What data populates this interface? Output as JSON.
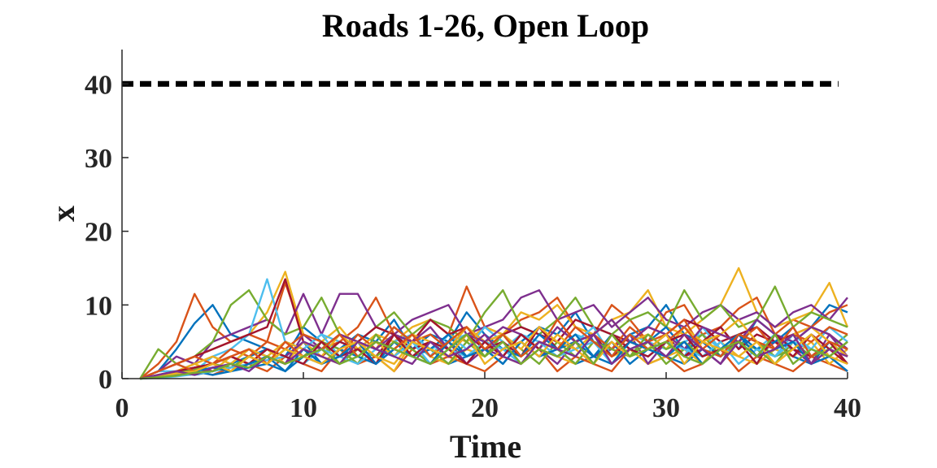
{
  "chart_data": {
    "type": "line",
    "title": "Roads 1-26, Open Loop",
    "xlabel": "Time",
    "ylabel": "x",
    "xlim": [
      0,
      40
    ],
    "ylim": [
      0,
      44
    ],
    "xticks": [
      "0",
      "10",
      "20",
      "30",
      "40"
    ],
    "yticks": [
      "0",
      "10",
      "20",
      "30",
      "40"
    ],
    "grid": false,
    "legend": "none",
    "x": [
      1,
      2,
      3,
      4,
      5,
      6,
      7,
      8,
      9,
      10,
      11,
      12,
      13,
      14,
      15,
      16,
      17,
      18,
      19,
      20,
      21,
      22,
      23,
      24,
      25,
      26,
      27,
      28,
      29,
      30,
      31,
      32,
      33,
      34,
      35,
      36,
      37,
      38,
      39,
      40
    ],
    "threshold": {
      "value": 40,
      "x_range": [
        0,
        39.5
      ],
      "style": "dashed",
      "color": "#000000"
    },
    "palette": [
      "#0072BD",
      "#D95319",
      "#EDB120",
      "#7E2F8E",
      "#77AC30",
      "#4DBEEE",
      "#A2142F"
    ],
    "series": [
      {
        "values": [
          0,
          1,
          4,
          7.5,
          10,
          6,
          5,
          4,
          3,
          7,
          5,
          4,
          6,
          5,
          8,
          4,
          6,
          5,
          9,
          6,
          4,
          5,
          7,
          6,
          9,
          5,
          4,
          6,
          7,
          10,
          6,
          5,
          7,
          4,
          8,
          6,
          5,
          7,
          10,
          9
        ]
      },
      {
        "values": [
          0,
          2,
          5,
          11.5,
          7,
          5,
          6,
          5,
          13,
          6,
          4,
          5,
          7,
          11,
          6,
          5,
          8,
          6,
          12.5,
          7,
          6,
          8,
          9,
          11,
          7,
          6,
          10,
          8,
          5,
          9,
          10,
          6,
          7,
          9.5,
          11,
          6,
          8,
          7,
          9,
          10
        ]
      },
      {
        "values": [
          0,
          1,
          2,
          3,
          4,
          5,
          6,
          9,
          14.5,
          6,
          5,
          7,
          4,
          6,
          5,
          7,
          8,
          6,
          5,
          7,
          6,
          9,
          8,
          10,
          7,
          6,
          8,
          9,
          12,
          7,
          6,
          8,
          10,
          15,
          9,
          7,
          8,
          9,
          13,
          7
        ]
      },
      {
        "values": [
          0,
          1,
          3,
          2,
          5,
          6,
          7,
          8,
          6,
          11.5,
          6,
          11.5,
          11.5,
          7,
          6,
          8,
          9,
          10,
          6,
          7,
          8,
          11,
          12,
          8,
          9,
          10,
          7,
          9,
          11,
          8,
          7,
          9,
          10,
          8,
          9,
          7,
          9,
          10,
          8,
          11
        ]
      },
      {
        "values": [
          0,
          4,
          2,
          3,
          5,
          10,
          12,
          8,
          6,
          7,
          11,
          6,
          5,
          7,
          9,
          6,
          8,
          7,
          5,
          9,
          12,
          7,
          6,
          8,
          11,
          7,
          6,
          8,
          9,
          7,
          12,
          8,
          10,
          7,
          8,
          12.5,
          7,
          9,
          8,
          7
        ]
      },
      {
        "values": [
          0,
          1,
          1,
          2,
          3,
          4,
          6,
          13.5,
          5,
          4,
          6,
          5,
          4,
          3,
          5,
          6,
          4,
          5,
          6,
          5,
          4,
          6,
          5,
          4,
          6,
          5,
          4,
          6,
          5,
          4,
          5,
          6,
          4,
          5,
          4,
          6,
          5,
          4,
          3,
          5
        ]
      },
      {
        "values": [
          0,
          1,
          2,
          3,
          4,
          5,
          6,
          7,
          13.5,
          5,
          4,
          6,
          5,
          7,
          6,
          5,
          8,
          6,
          7,
          5,
          6,
          7,
          6,
          5,
          8,
          7,
          6,
          5,
          7,
          6,
          8,
          7,
          5,
          6,
          7,
          5,
          6,
          7,
          6,
          4
        ]
      },
      {
        "values": [
          0,
          0.5,
          1,
          0.5,
          1,
          2,
          3,
          4,
          3,
          5,
          2,
          3,
          4,
          2,
          5,
          3,
          4,
          2,
          3,
          4,
          2,
          5,
          3,
          4,
          2,
          3,
          5,
          2,
          4,
          3,
          2,
          4,
          3,
          5,
          2,
          4,
          3,
          2,
          5,
          3
        ]
      },
      {
        "values": [
          0,
          0.2,
          0.5,
          1,
          0.5,
          1.5,
          2,
          1,
          3,
          2,
          1,
          4,
          2,
          3,
          1,
          4,
          2,
          3,
          2,
          1,
          3,
          2,
          4,
          1,
          3,
          2,
          1,
          4,
          2,
          3,
          1,
          2,
          4,
          1,
          3,
          2,
          1,
          3,
          2,
          1
        ]
      },
      {
        "values": [
          0,
          0.5,
          1,
          2,
          1,
          3,
          2,
          4,
          2,
          5,
          3,
          2,
          4,
          3,
          1,
          5,
          3,
          2,
          4,
          3,
          5,
          2,
          4,
          3,
          2,
          5,
          3,
          4,
          2,
          3,
          4,
          2,
          5,
          3,
          2,
          4,
          3,
          5,
          2,
          4
        ]
      },
      {
        "values": [
          0,
          0.3,
          0.8,
          1.5,
          1,
          2,
          4,
          3,
          2,
          6,
          4,
          3,
          5,
          2,
          4,
          6,
          3,
          5,
          2,
          4,
          3,
          6,
          4,
          2,
          5,
          3,
          4,
          6,
          2,
          5,
          3,
          4,
          2,
          6,
          3,
          5,
          4,
          2,
          6,
          3
        ]
      },
      {
        "values": [
          0,
          0.2,
          0.5,
          1,
          2,
          1,
          3,
          2,
          4,
          3,
          5,
          4,
          2,
          6,
          3,
          5,
          4,
          2,
          5,
          3,
          6,
          4,
          2,
          5,
          3,
          6,
          4,
          3,
          5,
          2,
          4,
          6,
          3,
          5,
          4,
          2,
          5,
          3,
          4,
          6
        ]
      },
      {
        "values": [
          0,
          1,
          2,
          1,
          3,
          2,
          4,
          3,
          5,
          4,
          6,
          3,
          5,
          4,
          7,
          5,
          3,
          6,
          4,
          7,
          5,
          3,
          6,
          4,
          5,
          7,
          3,
          6,
          4,
          5,
          3,
          7,
          4,
          6,
          5,
          3,
          6,
          4,
          7,
          5
        ]
      },
      {
        "values": [
          0,
          0.5,
          1,
          1.5,
          2,
          1,
          2,
          3,
          2,
          4,
          3,
          5,
          4,
          3,
          6,
          4,
          5,
          3,
          6,
          4,
          5,
          3,
          7,
          4,
          5,
          6,
          3,
          5,
          4,
          6,
          3,
          5,
          7,
          4,
          6,
          5,
          3,
          6,
          4,
          2
        ]
      },
      {
        "values": [
          0,
          0.2,
          0.4,
          1,
          0.5,
          1,
          1.5,
          2,
          1,
          3,
          2,
          4,
          3,
          2,
          5,
          3,
          4,
          6,
          3,
          5,
          4,
          3,
          6,
          4,
          5,
          3,
          6,
          4,
          5,
          7,
          4,
          5,
          3,
          6,
          4,
          5,
          7,
          3,
          5,
          4
        ]
      },
      {
        "values": [
          0,
          1,
          2,
          3,
          2,
          4,
          3,
          5,
          4,
          6,
          5,
          3,
          6,
          4,
          7,
          5,
          6,
          4,
          7,
          5,
          3,
          6,
          4,
          8,
          5,
          6,
          4,
          7,
          5,
          6,
          8,
          4,
          6,
          5,
          7,
          4,
          6,
          5,
          7,
          6
        ]
      },
      {
        "values": [
          0,
          0.5,
          1,
          2,
          3,
          2,
          4,
          3,
          5,
          4,
          3,
          6,
          4,
          5,
          3,
          6,
          5,
          4,
          7,
          5,
          6,
          4,
          7,
          5,
          4,
          6,
          8,
          5,
          6,
          4,
          7,
          5,
          6,
          8,
          5,
          4,
          6,
          7,
          5,
          3
        ]
      },
      {
        "values": [
          0,
          0.3,
          0.6,
          1,
          2,
          3,
          2,
          4,
          3,
          5,
          4,
          6,
          5,
          4,
          6,
          5,
          7,
          4,
          6,
          5,
          7,
          6,
          4,
          7,
          5,
          6,
          8,
          5,
          7,
          6,
          4,
          7,
          6,
          5,
          8,
          6,
          5,
          7,
          6,
          4
        ]
      },
      {
        "values": [
          0,
          0.4,
          0.8,
          1.2,
          2,
          1.5,
          3,
          2,
          4,
          3,
          5,
          2,
          4,
          3,
          5,
          4,
          2,
          5,
          3,
          4,
          6,
          3,
          5,
          4,
          2,
          5,
          4,
          3,
          6,
          4,
          5,
          3,
          4,
          6,
          5,
          3,
          4,
          6,
          3,
          5
        ]
      },
      {
        "values": [
          0,
          0.1,
          0.3,
          0.6,
          1,
          1.5,
          2,
          2.5,
          3,
          2,
          4,
          3,
          2,
          4,
          3,
          5,
          2,
          4,
          3,
          5,
          4,
          2,
          5,
          3,
          4,
          5,
          2,
          4,
          3,
          5,
          4,
          3,
          5,
          2,
          4,
          3,
          5,
          4,
          3,
          1
        ]
      },
      {
        "values": [
          0,
          0.5,
          1,
          1.5,
          2,
          3,
          2,
          4,
          3,
          2,
          5,
          3,
          4,
          2,
          6,
          3,
          5,
          4,
          2,
          5,
          3,
          6,
          4,
          3,
          5,
          2,
          6,
          4,
          3,
          5,
          6,
          3,
          4,
          5,
          2,
          6,
          4,
          3,
          5,
          2
        ]
      },
      {
        "values": [
          0,
          0.2,
          0.5,
          1,
          1.5,
          1,
          2,
          3,
          1,
          4,
          2,
          3,
          5,
          2,
          4,
          3,
          2,
          5,
          3,
          4,
          2,
          5,
          3,
          4,
          6,
          3,
          2,
          5,
          4,
          3,
          5,
          2,
          4,
          6,
          3,
          4,
          5,
          2,
          3,
          1
        ]
      },
      {
        "values": [
          0,
          1,
          2,
          1,
          2,
          3,
          4,
          2,
          5,
          3,
          4,
          6,
          3,
          5,
          4,
          6,
          3,
          5,
          7,
          4,
          6,
          3,
          5,
          4,
          7,
          5,
          3,
          6,
          4,
          5,
          7,
          4,
          3,
          6,
          5,
          4,
          7,
          3,
          5,
          4
        ]
      },
      {
        "values": [
          0,
          0.3,
          0.7,
          1,
          2,
          1,
          3,
          2,
          4,
          3,
          2,
          4,
          5,
          3,
          2,
          5,
          4,
          3,
          6,
          2,
          4,
          5,
          3,
          6,
          4,
          2,
          5,
          3,
          4,
          6,
          2,
          5,
          4,
          3,
          5,
          2,
          4,
          6,
          3,
          2
        ]
      },
      {
        "values": [
          0,
          0.5,
          1,
          0.5,
          1.5,
          2,
          1,
          3,
          2,
          4,
          3,
          2,
          5,
          4,
          3,
          2,
          5,
          3,
          4,
          6,
          3,
          2,
          5,
          4,
          3,
          6,
          2,
          4,
          5,
          3,
          6,
          4,
          2,
          5,
          3,
          4,
          6,
          2,
          4,
          3
        ]
      },
      {
        "values": [
          0,
          0.2,
          0.4,
          0.8,
          1,
          2,
          1.5,
          3,
          2,
          3,
          4,
          2,
          3,
          5,
          4,
          3,
          2,
          4,
          6,
          3,
          5,
          2,
          4,
          3,
          5,
          2,
          6,
          3,
          4,
          5,
          3,
          2,
          4,
          5,
          3,
          6,
          2,
          4,
          3,
          5
        ]
      }
    ]
  }
}
